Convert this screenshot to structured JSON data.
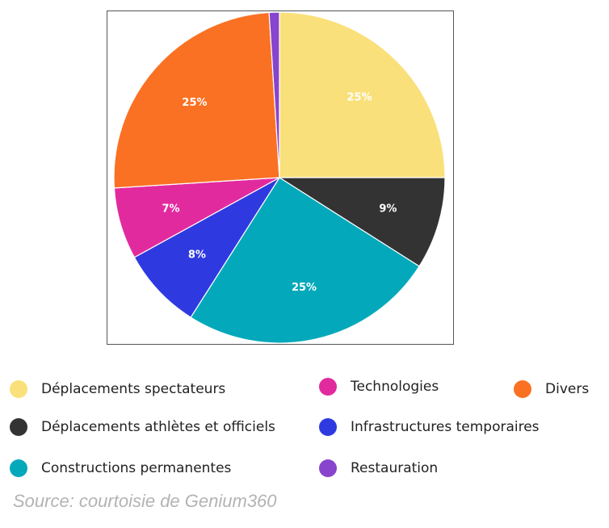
{
  "chart_data": {
    "type": "pie",
    "title": "",
    "start_angle": "12 o'clock",
    "direction": "clockwise",
    "slices": [
      {
        "name": "Déplacements spectateurs",
        "value": 25,
        "label": "25%",
        "color": "#fae07a"
      },
      {
        "name": "Déplacements athlètes et officiels",
        "value": 9,
        "label": "9%",
        "color": "#333333"
      },
      {
        "name": "Constructions permanentes",
        "value": 25,
        "label": "25%",
        "color": "#03a9bb"
      },
      {
        "name": "Infrastructures temporaires",
        "value": 8,
        "label": "8%",
        "color": "#2e3ae0"
      },
      {
        "name": "Technologies",
        "value": 7,
        "label": "7%",
        "color": "#e22a9f"
      },
      {
        "name": "Divers",
        "value": 25,
        "label": "25%",
        "color": "#fa7123"
      },
      {
        "name": "Restauration",
        "value": 1,
        "label": "",
        "color": "#8844cc"
      }
    ],
    "legend_placement": "bottom"
  },
  "legend": [
    {
      "label": "Déplacements spectateurs",
      "color": "#fae07a"
    },
    {
      "label": "Technologies",
      "color": "#e22a9f"
    },
    {
      "label": "Divers",
      "color": "#fa7123"
    },
    {
      "label": "Déplacements athlètes et officiels",
      "color": "#333333"
    },
    {
      "label": "Infrastructures temporaires",
      "color": "#2e3ae0"
    },
    {
      "label": "Constructions permanentes",
      "color": "#03a9bb"
    },
    {
      "label": "Restauration",
      "color": "#8844cc"
    }
  ],
  "source": "Source: courtoisie de Genium360"
}
